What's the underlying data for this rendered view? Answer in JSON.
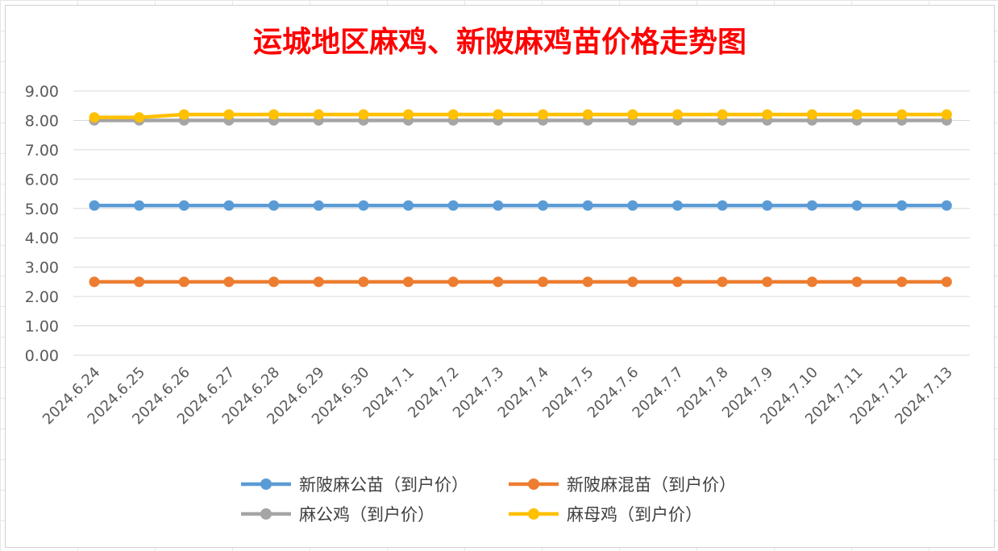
{
  "chart_data": {
    "type": "line",
    "title": "运城地区麻鸡、新陂麻鸡苗价格走势图",
    "xlabel": "",
    "ylabel": "",
    "ylim": [
      0,
      9
    ],
    "yticks": [
      "0.00",
      "1.00",
      "2.00",
      "3.00",
      "4.00",
      "5.00",
      "6.00",
      "7.00",
      "8.00",
      "9.00"
    ],
    "grid": true,
    "legend_position": "bottom",
    "categories": [
      "2024.6.24",
      "2024.6.25",
      "2024.6.26",
      "2024.6.27",
      "2024.6.28",
      "2024.6.29",
      "2024.6.30",
      "2024.7.1",
      "2024.7.2",
      "2024.7.3",
      "2024.7.4",
      "2024.7.5",
      "2024.7.6",
      "2024.7.7",
      "2024.7.8",
      "2024.7.9",
      "2024.7.10",
      "2024.7.11",
      "2024.7.12",
      "2024.7.13"
    ],
    "series": [
      {
        "name": "新陂麻公苗（到户价）",
        "color": "#5b9bd5",
        "values": [
          5.1,
          5.1,
          5.1,
          5.1,
          5.1,
          5.1,
          5.1,
          5.1,
          5.1,
          5.1,
          5.1,
          5.1,
          5.1,
          5.1,
          5.1,
          5.1,
          5.1,
          5.1,
          5.1,
          5.1
        ]
      },
      {
        "name": "新陂麻混苗（到户价）",
        "color": "#ed7d31",
        "values": [
          2.5,
          2.5,
          2.5,
          2.5,
          2.5,
          2.5,
          2.5,
          2.5,
          2.5,
          2.5,
          2.5,
          2.5,
          2.5,
          2.5,
          2.5,
          2.5,
          2.5,
          2.5,
          2.5,
          2.5
        ]
      },
      {
        "name": "麻公鸡（到户价）",
        "color": "#a5a5a5",
        "values": [
          8.0,
          8.0,
          8.0,
          8.0,
          8.0,
          8.0,
          8.0,
          8.0,
          8.0,
          8.0,
          8.0,
          8.0,
          8.0,
          8.0,
          8.0,
          8.0,
          8.0,
          8.0,
          8.0,
          8.0
        ]
      },
      {
        "name": "麻母鸡（到户价）",
        "color": "#ffc000",
        "values": [
          8.1,
          8.1,
          8.2,
          8.2,
          8.2,
          8.2,
          8.2,
          8.2,
          8.2,
          8.2,
          8.2,
          8.2,
          8.2,
          8.2,
          8.2,
          8.2,
          8.2,
          8.2,
          8.2,
          8.2
        ]
      }
    ]
  }
}
